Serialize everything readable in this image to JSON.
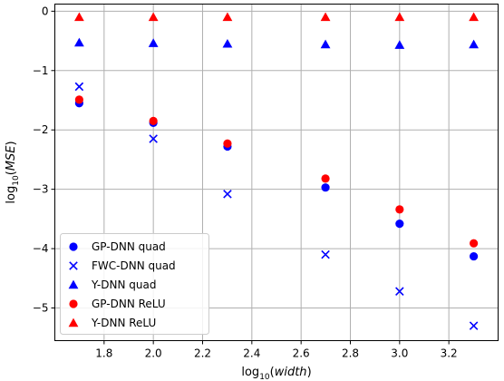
{
  "chart_data": {
    "type": "scatter",
    "xlabel": "log10(width)",
    "ylabel": "log10(MSE)",
    "xlim": [
      1.6,
      3.4
    ],
    "ylim": [
      -5.55,
      0.12
    ],
    "xticks": [
      1.8,
      2.0,
      2.2,
      2.4,
      2.6,
      2.8,
      3.0,
      3.2
    ],
    "xtick_labels": [
      "1.8",
      "2.0",
      "2.2",
      "2.4",
      "2.6",
      "2.8",
      "3.0",
      "3.2"
    ],
    "yticks": [
      0,
      -1,
      -2,
      -3,
      -4,
      -5
    ],
    "ytick_labels": [
      "0",
      "−1",
      "−2",
      "−3",
      "−4",
      "−5"
    ],
    "grid": true,
    "legend_position": "lower-left",
    "x": [
      1.699,
      2.0,
      2.301,
      2.699,
      3.0,
      3.301
    ],
    "series": [
      {
        "name": "GP-DNN quad",
        "marker": "circle",
        "color": "#0000ff",
        "values": [
          -1.55,
          -1.88,
          -2.28,
          -2.97,
          -3.58,
          -4.13
        ]
      },
      {
        "name": "FWC-DNN quad",
        "marker": "x",
        "color": "#0000ff",
        "values": [
          -1.27,
          -2.15,
          -3.08,
          -4.1,
          -4.72,
          -5.3
        ]
      },
      {
        "name": "Y-DNN quad",
        "marker": "triangle",
        "color": "#0000ff",
        "values": [
          -0.53,
          -0.54,
          -0.55,
          -0.56,
          -0.57,
          -0.56
        ]
      },
      {
        "name": "GP-DNN ReLU",
        "marker": "circle",
        "color": "#ff0000",
        "values": [
          -1.49,
          -1.85,
          -2.23,
          -2.82,
          -3.34,
          -3.91
        ]
      },
      {
        "name": "Y-DNN ReLU",
        "marker": "triangle",
        "color": "#ff0000",
        "values": [
          -0.1,
          -0.1,
          -0.1,
          -0.1,
          -0.1,
          -0.1
        ]
      }
    ]
  }
}
